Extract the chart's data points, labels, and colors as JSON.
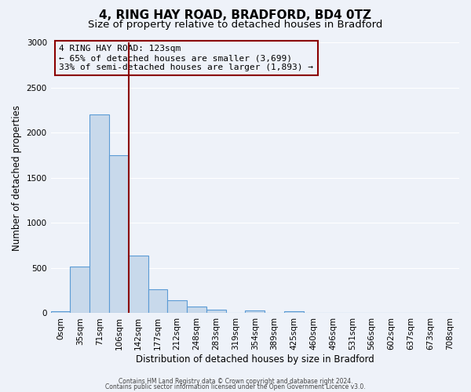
{
  "title": "4, RING HAY ROAD, BRADFORD, BD4 0TZ",
  "subtitle": "Size of property relative to detached houses in Bradford",
  "xlabel": "Distribution of detached houses by size in Bradford",
  "ylabel": "Number of detached properties",
  "bin_labels": [
    "0sqm",
    "35sqm",
    "71sqm",
    "106sqm",
    "142sqm",
    "177sqm",
    "212sqm",
    "248sqm",
    "283sqm",
    "319sqm",
    "354sqm",
    "389sqm",
    "425sqm",
    "460sqm",
    "496sqm",
    "531sqm",
    "566sqm",
    "602sqm",
    "637sqm",
    "673sqm",
    "708sqm"
  ],
  "bar_values": [
    20,
    520,
    2200,
    1750,
    635,
    265,
    140,
    75,
    40,
    0,
    30,
    0,
    20,
    0,
    0,
    0,
    0,
    0,
    0,
    0,
    0
  ],
  "bar_color": "#c8d9eb",
  "bar_edge_color": "#5b9bd5",
  "vline_pos": 3.5,
  "vline_color": "#8b0000",
  "ylim": [
    0,
    3000
  ],
  "yticks": [
    0,
    500,
    1000,
    1500,
    2000,
    2500,
    3000
  ],
  "annotation_title": "4 RING HAY ROAD: 123sqm",
  "annotation_line1": "← 65% of detached houses are smaller (3,699)",
  "annotation_line2": "33% of semi-detached houses are larger (1,893) →",
  "annotation_box_color": "#8b0000",
  "footer_line1": "Contains HM Land Registry data © Crown copyright and database right 2024.",
  "footer_line2": "Contains public sector information licensed under the Open Government Licence v3.0.",
  "background_color": "#eef2f9",
  "grid_color": "#ffffff",
  "title_fontsize": 11,
  "subtitle_fontsize": 9.5,
  "axis_label_fontsize": 8.5,
  "tick_fontsize": 7.5,
  "annotation_fontsize": 8,
  "footer_fontsize": 5.5
}
